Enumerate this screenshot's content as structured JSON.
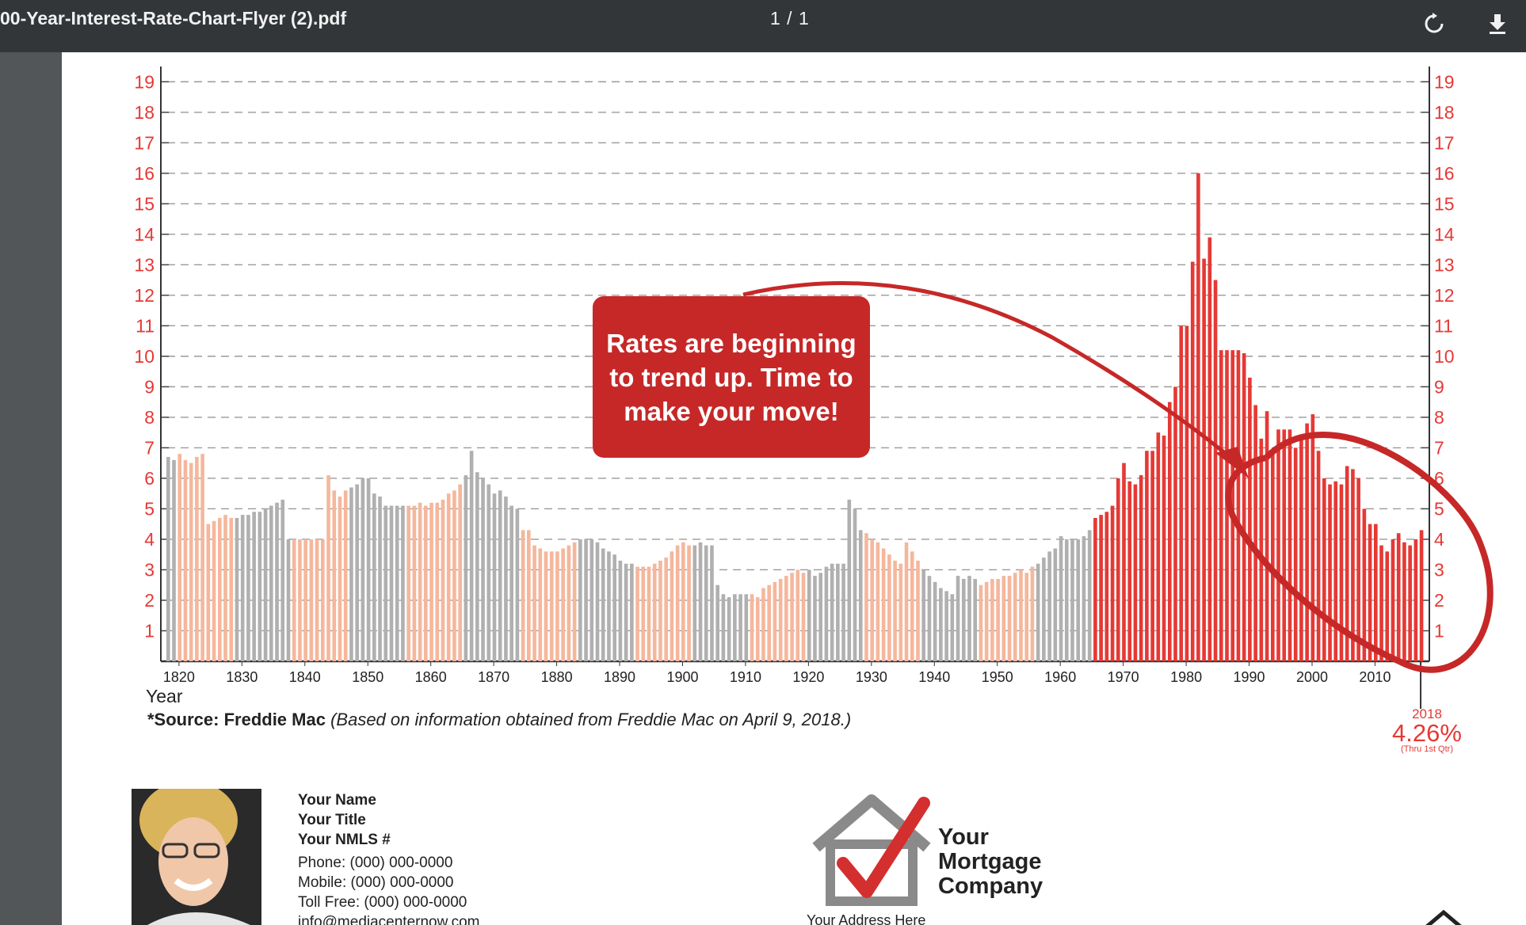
{
  "toolbar": {
    "file_name": "00-Year-Interest-Rate-Chart-Flyer (2).pdf",
    "page_counter": "1 / 1",
    "rotate_icon": "rotate-icon",
    "download_icon": "download-icon"
  },
  "chart_data": {
    "type": "bar",
    "xlabel": "Year",
    "ylabel": "",
    "ylim": [
      0,
      19
    ],
    "y_ticks": [
      "1",
      "2",
      "3",
      "4",
      "5",
      "6",
      "7",
      "8",
      "9",
      "10",
      "11",
      "12",
      "13",
      "14",
      "15",
      "16",
      "17",
      "18",
      "19"
    ],
    "x_ticks": [
      "1820",
      "1830",
      "1840",
      "1850",
      "1860",
      "1870",
      "1880",
      "1890",
      "1900",
      "1910",
      "1920",
      "1930",
      "1940",
      "1950",
      "1960",
      "1970",
      "1980",
      "1990",
      "2000",
      "2010"
    ],
    "x_start": 1818,
    "x_end": 2018,
    "grid": "horizontal dashed",
    "colors": {
      "gray": "#b0b0b0",
      "peach": "#f5b79c",
      "red": "#e53935"
    },
    "values": [
      6.7,
      6.6,
      6.8,
      6.6,
      6.5,
      6.7,
      6.8,
      4.5,
      4.6,
      4.7,
      4.8,
      4.7,
      4.7,
      4.8,
      4.8,
      4.9,
      4.9,
      5.0,
      5.1,
      5.2,
      5.3,
      4.0,
      4.0,
      4.0,
      4.0,
      4.0,
      4.0,
      4.0,
      6.1,
      5.6,
      5.4,
      5.6,
      5.7,
      5.8,
      6.0,
      6.0,
      5.5,
      5.4,
      5.1,
      5.1,
      5.1,
      5.1,
      5.1,
      5.1,
      5.2,
      5.1,
      5.2,
      5.2,
      5.3,
      5.5,
      5.6,
      5.8,
      6.1,
      6.9,
      6.2,
      6.0,
      5.8,
      5.5,
      5.6,
      5.4,
      5.1,
      5.0,
      4.3,
      4.3,
      3.8,
      3.7,
      3.6,
      3.6,
      3.6,
      3.7,
      3.8,
      3.9,
      4.0,
      4.0,
      4.0,
      3.9,
      3.7,
      3.6,
      3.5,
      3.3,
      3.2,
      3.2,
      3.1,
      3.1,
      3.1,
      3.2,
      3.3,
      3.4,
      3.6,
      3.8,
      3.9,
      3.8,
      3.8,
      3.9,
      3.8,
      3.8,
      2.5,
      2.2,
      2.1,
      2.2,
      2.2,
      2.2,
      2.2,
      2.1,
      2.4,
      2.5,
      2.6,
      2.7,
      2.8,
      2.9,
      3.0,
      2.9,
      3.0,
      2.8,
      2.9,
      3.1,
      3.2,
      3.2,
      3.2,
      5.3,
      5.0,
      4.3,
      4.2,
      4.0,
      3.9,
      3.7,
      3.5,
      3.3,
      3.2,
      3.9,
      3.6,
      3.3,
      3.0,
      2.8,
      2.6,
      2.4,
      2.3,
      2.2,
      2.8,
      2.7,
      2.8,
      2.7,
      2.5,
      2.6,
      2.7,
      2.7,
      2.8,
      2.8,
      2.9,
      3.0,
      2.9,
      3.1,
      3.2,
      3.4,
      3.6,
      3.7,
      4.1,
      4.0,
      4.0,
      4.0,
      4.1,
      4.3,
      4.7,
      4.8,
      4.9,
      5.1,
      6.0,
      6.5,
      5.9,
      5.8,
      6.1,
      6.9,
      6.9,
      7.5,
      7.4,
      8.5,
      9.0,
      11.0,
      11.0,
      13.1,
      16.0,
      13.2,
      13.9,
      12.5,
      10.2,
      10.2,
      10.2,
      10.2,
      10.1,
      9.3,
      8.4,
      7.3,
      8.2,
      6.9,
      7.6,
      7.6,
      7.6,
      7.0,
      7.4,
      7.8,
      8.1,
      6.9,
      6.0,
      5.8,
      5.9,
      5.8,
      6.4,
      6.3,
      6.0,
      5.0,
      4.5,
      4.5,
      3.8,
      3.6,
      4.0,
      4.2,
      3.9,
      3.8,
      4.0,
      4.3
    ],
    "latest_year": "2018",
    "latest_value": "4.26%",
    "latest_note": "(Thru 1st Qtr)",
    "source_label": "*Source: Freddie Mac",
    "source_note": "(Based on information obtained from Freddie Mac on April 9, 2018.)",
    "annotation": "Rates are beginning to trend up. Time to make your move!"
  },
  "contact": {
    "name": "Your Name",
    "title": "Your Title",
    "nmls": "Your NMLS #",
    "phone": "Phone: (000) 000-0000",
    "mobile": "Mobile: (000) 000-0000",
    "toll_free": "Toll Free: (000) 000-0000",
    "email": "info@mediacenternow.com"
  },
  "company": {
    "name_line1": "Your",
    "name_line2": "Mortgage",
    "name_line3": "Company",
    "address": "Your Address Here"
  }
}
